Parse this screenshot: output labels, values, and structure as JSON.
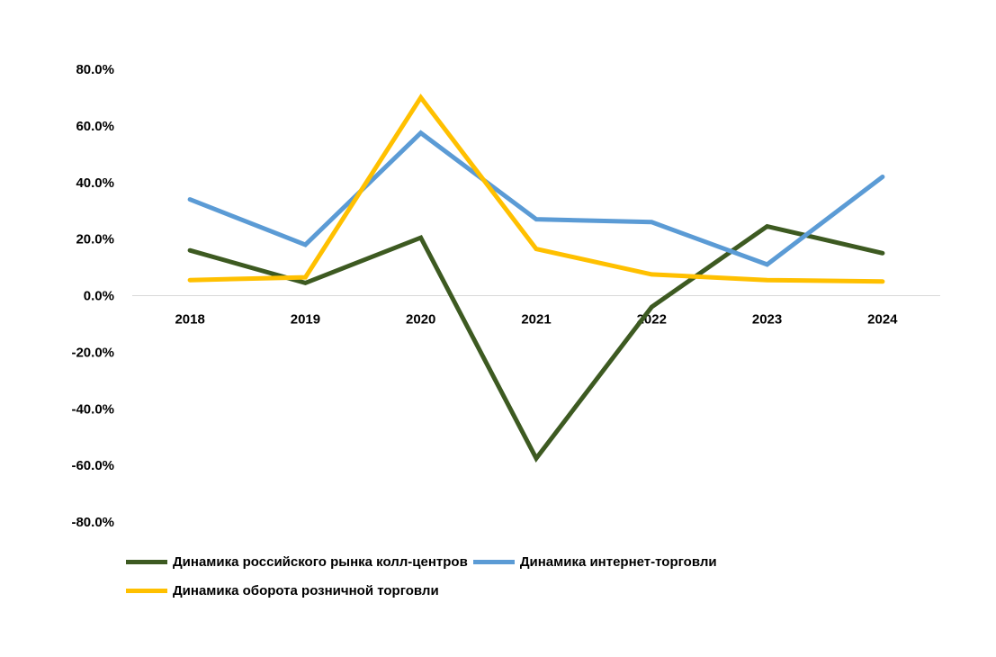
{
  "chart_data": {
    "type": "line",
    "categories": [
      "2018",
      "2019",
      "2020",
      "2021",
      "2022",
      "2023",
      "2024"
    ],
    "yticks": [
      "80.0%",
      "60.0%",
      "40.0%",
      "20.0%",
      "0.0%",
      "-20.0%",
      "-40.0%",
      "-60.0%",
      "-80.0%"
    ],
    "ylim": [
      -80,
      80
    ],
    "grid": false,
    "legend_position": "bottom",
    "series": [
      {
        "name": "Динамика российского рынка колл-центров",
        "color": "#3d5a21",
        "values": [
          16.0,
          4.5,
          20.5,
          -57.5,
          -4.0,
          24.5,
          15.0
        ]
      },
      {
        "name": "Динамика интернет-торговли",
        "color": "#5b9bd5",
        "values": [
          34.0,
          18.0,
          57.5,
          27.0,
          26.0,
          11.0,
          42.0
        ]
      },
      {
        "name": "Динамика оборота розничной торговли",
        "color": "#ffc000",
        "values": [
          5.5,
          6.5,
          70.0,
          16.5,
          7.5,
          5.5,
          5.0
        ]
      }
    ]
  }
}
